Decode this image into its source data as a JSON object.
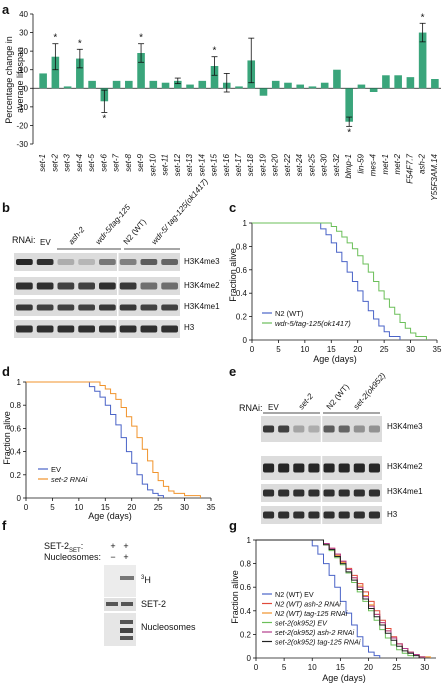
{
  "panels": {
    "a": {
      "label": "a"
    },
    "b": {
      "label": "b"
    },
    "c": {
      "label": "c"
    },
    "d": {
      "label": "d"
    },
    "e": {
      "label": "e"
    },
    "f": {
      "label": "f"
    },
    "g": {
      "label": "g"
    }
  },
  "chart_data": [
    {
      "type": "bar",
      "panel": "a",
      "ylabel_line1": "Percentage  change in",
      "ylabel_line2": "average lifespan",
      "ylim": [
        -30,
        40
      ],
      "yticks": [
        -30,
        -20,
        -10,
        0,
        10,
        20,
        30,
        40
      ],
      "categories": [
        "set-1",
        "set-2",
        "set-3",
        "set-4",
        "set-5",
        "set-6",
        "set-7",
        "set-8",
        "set-9",
        "set-10",
        "set-11",
        "set-12",
        "set-13",
        "set-14",
        "set-15",
        "set-16",
        "set-17",
        "set-18",
        "set-19",
        "set-20",
        "set-22",
        "set-24",
        "set-25",
        "set-30",
        "set-32",
        "blmp-1",
        "lin-59",
        "mes-4",
        "met-1",
        "met-2",
        "F54F7.7",
        "ash-2",
        "Y55F3AM.14"
      ],
      "values": [
        8,
        17,
        1,
        16,
        4,
        -7,
        4,
        4,
        19,
        4,
        3,
        4,
        2,
        4,
        12,
        3,
        1,
        15,
        -4,
        4,
        3,
        2,
        1,
        3,
        10,
        -18,
        2,
        -2,
        7,
        7,
        6,
        30,
        5
      ],
      "errors": [
        0,
        7,
        0,
        5,
        0,
        6,
        0,
        0,
        5,
        0,
        0,
        1.5,
        0,
        0,
        5,
        5,
        0,
        12,
        0,
        0,
        0,
        0,
        0,
        0,
        0,
        2.5,
        0,
        0,
        0,
        0,
        0,
        5,
        0
      ],
      "significant": [
        false,
        true,
        false,
        true,
        false,
        true,
        false,
        false,
        true,
        false,
        false,
        false,
        false,
        false,
        true,
        false,
        false,
        false,
        false,
        false,
        false,
        false,
        false,
        false,
        false,
        true,
        false,
        false,
        false,
        false,
        false,
        true,
        false
      ],
      "sig_marker": "*",
      "color": "#3aa57b"
    },
    {
      "type": "line",
      "panel": "c",
      "xlabel": "Age (days)",
      "ylabel": "Fraction alive",
      "xlim": [
        0,
        35
      ],
      "ylim": [
        0,
        1
      ],
      "xticks": [
        0,
        5,
        10,
        15,
        20,
        25,
        30,
        35
      ],
      "yticks": [
        0,
        0.2,
        0.4,
        0.6,
        0.8,
        1
      ],
      "series": [
        {
          "name": "N2 (WT)",
          "color": "#4a63c7",
          "x": [
            0,
            12,
            13,
            14,
            15,
            16,
            17,
            18,
            19,
            20,
            21,
            22,
            23,
            24,
            25,
            26,
            28
          ],
          "y": [
            1,
            1,
            0.95,
            0.9,
            0.83,
            0.75,
            0.67,
            0.58,
            0.5,
            0.42,
            0.33,
            0.25,
            0.18,
            0.12,
            0.07,
            0.03,
            0
          ]
        },
        {
          "name": "wdr-5/tag-125(ok1417)",
          "color": "#6bbf59",
          "x": [
            0,
            14,
            15,
            16,
            17,
            18,
            19,
            20,
            21,
            22,
            23,
            24,
            25,
            26,
            27,
            28,
            29,
            30,
            31,
            33
          ],
          "y": [
            1,
            1,
            0.97,
            0.93,
            0.88,
            0.83,
            0.78,
            0.72,
            0.65,
            0.58,
            0.5,
            0.42,
            0.35,
            0.28,
            0.22,
            0.15,
            0.1,
            0.06,
            0.03,
            0
          ]
        }
      ]
    },
    {
      "type": "line",
      "panel": "d",
      "xlabel": "Age (days)",
      "ylabel": "Fraction alive",
      "xlim": [
        0,
        35
      ],
      "ylim": [
        0,
        1
      ],
      "xticks": [
        0,
        5,
        10,
        15,
        20,
        25,
        30,
        35
      ],
      "yticks": [
        0,
        0.2,
        0.4,
        0.6,
        0.8,
        1
      ],
      "series": [
        {
          "name": "EV",
          "color": "#4a63c7",
          "x": [
            0,
            11,
            12,
            13,
            14,
            15,
            16,
            17,
            18,
            19,
            20,
            21,
            22,
            23,
            24,
            25,
            26
          ],
          "y": [
            1,
            1,
            0.96,
            0.92,
            0.87,
            0.8,
            0.72,
            0.63,
            0.52,
            0.4,
            0.3,
            0.2,
            0.12,
            0.07,
            0.04,
            0.02,
            0
          ]
        },
        {
          "name": "set-2 RNAi",
          "color": "#f0932b",
          "x": [
            0,
            13,
            14,
            15,
            16,
            17,
            18,
            19,
            20,
            21,
            22,
            23,
            24,
            25,
            26,
            27,
            28,
            30,
            33
          ],
          "y": [
            1,
            1,
            0.97,
            0.94,
            0.9,
            0.85,
            0.78,
            0.7,
            0.62,
            0.52,
            0.42,
            0.32,
            0.22,
            0.15,
            0.1,
            0.06,
            0.04,
            0.02,
            0
          ]
        }
      ]
    },
    {
      "type": "line",
      "panel": "g",
      "xlabel": "Age (days)",
      "ylabel": "Fraction alive",
      "xlim": [
        0,
        32
      ],
      "ylim": [
        0,
        1
      ],
      "xticks": [
        0,
        5,
        10,
        15,
        20,
        25,
        30
      ],
      "yticks": [
        0,
        0.2,
        0.4,
        0.6,
        0.8,
        1
      ],
      "series": [
        {
          "name": "N2 (WT) EV",
          "color": "#4a63c7",
          "x": [
            0,
            9,
            10,
            11,
            12,
            13,
            14,
            15,
            16,
            17,
            18,
            19,
            20,
            21,
            22
          ],
          "y": [
            1,
            1,
            0.95,
            0.88,
            0.8,
            0.7,
            0.6,
            0.48,
            0.38,
            0.28,
            0.18,
            0.1,
            0.05,
            0.02,
            0
          ]
        },
        {
          "name": "N2 (WT) ash-2 RNAi",
          "color": "#e04a3a",
          "x": [
            0,
            11,
            12,
            13,
            14,
            15,
            16,
            17,
            18,
            19,
            20,
            21,
            22,
            23,
            24,
            25,
            26,
            27,
            28,
            29,
            30
          ],
          "y": [
            1,
            1,
            0.97,
            0.93,
            0.88,
            0.82,
            0.76,
            0.7,
            0.63,
            0.56,
            0.48,
            0.4,
            0.32,
            0.25,
            0.18,
            0.12,
            0.08,
            0.05,
            0.03,
            0.01,
            0
          ]
        },
        {
          "name": "N2 (WT) tag-125 RNAi",
          "color": "#f0932b",
          "x": [
            0,
            11,
            12,
            13,
            14,
            15,
            16,
            17,
            18,
            19,
            20,
            21,
            22,
            23,
            24,
            25,
            26,
            27,
            28,
            29,
            31
          ],
          "y": [
            1,
            1,
            0.96,
            0.92,
            0.87,
            0.81,
            0.75,
            0.68,
            0.61,
            0.53,
            0.45,
            0.37,
            0.3,
            0.23,
            0.17,
            0.12,
            0.08,
            0.05,
            0.03,
            0.01,
            0
          ]
        },
        {
          "name": "set-2(ok952) EV",
          "color": "#6bbf59",
          "x": [
            0,
            11,
            12,
            13,
            14,
            15,
            16,
            17,
            18,
            19,
            20,
            21,
            22,
            23,
            24,
            25,
            26,
            27,
            28
          ],
          "y": [
            1,
            1,
            0.96,
            0.91,
            0.85,
            0.79,
            0.72,
            0.64,
            0.56,
            0.48,
            0.4,
            0.32,
            0.24,
            0.17,
            0.11,
            0.07,
            0.04,
            0.02,
            0
          ]
        },
        {
          "name": "set-2(ok952) ash-2 RNAi",
          "color": "#b43d8c",
          "x": [
            0,
            11,
            12,
            13,
            14,
            15,
            16,
            17,
            18,
            19,
            20,
            21,
            22,
            23,
            24,
            25,
            26,
            27,
            28,
            29,
            30
          ],
          "y": [
            1,
            1,
            0.97,
            0.93,
            0.88,
            0.82,
            0.75,
            0.68,
            0.6,
            0.52,
            0.44,
            0.37,
            0.3,
            0.23,
            0.17,
            0.12,
            0.08,
            0.05,
            0.03,
            0.01,
            0
          ]
        },
        {
          "name": "set-2(ok952) tag-125 RNAi",
          "color": "#222222",
          "x": [
            0,
            11,
            12,
            13,
            14,
            15,
            16,
            17,
            18,
            19,
            20,
            21,
            22,
            23,
            24,
            25,
            26,
            27,
            28,
            29
          ],
          "y": [
            1,
            1,
            0.96,
            0.92,
            0.86,
            0.8,
            0.73,
            0.66,
            0.58,
            0.5,
            0.42,
            0.35,
            0.28,
            0.21,
            0.15,
            0.1,
            0.06,
            0.04,
            0.02,
            0
          ]
        }
      ]
    }
  ],
  "blot_b": {
    "rnai_label": "RNAi:",
    "lanes": [
      "EV",
      "ash-2",
      "wdr-5/tag-125",
      "N2 (WT)",
      "wdr-5/ tag-125(ok1417)"
    ],
    "bands": [
      "H3K4me3",
      "H3K4me2",
      "H3K4me1",
      "H3"
    ]
  },
  "blot_e": {
    "rnai_label": "RNAi:",
    "lanes": [
      "EV",
      "set-2",
      "N2 (WT)",
      "set-2(ok952)"
    ],
    "bands": [
      "H3K4me3",
      "H3K4me2",
      "H3K4me1",
      "H3"
    ]
  },
  "blot_f": {
    "row1_label": "SET-2",
    "row1_sub": "SET",
    "row2_label": "Nucleosomes:",
    "row1_values": [
      "+",
      "+"
    ],
    "row2_values": [
      "−",
      "+"
    ],
    "bands": [
      "3H",
      "SET-2",
      "Nucleosomes"
    ],
    "h3_sup": "3",
    "h3_main": "H"
  }
}
